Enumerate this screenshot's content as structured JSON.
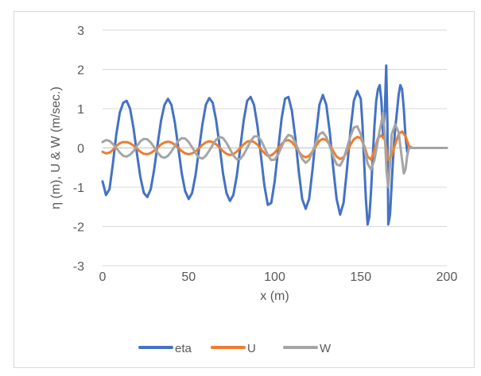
{
  "chart_data": {
    "type": "line",
    "xlabel": "x (m)",
    "ylabel": "η (m), U & W (m/sec.)",
    "xlim": [
      0,
      200
    ],
    "ylim": [
      -3,
      3
    ],
    "x_ticks": [
      0,
      50,
      100,
      150,
      200
    ],
    "y_ticks": [
      -3,
      -2,
      -1,
      0,
      1,
      2,
      3
    ],
    "grid": "horizontal",
    "legend_position": "bottom",
    "series": [
      {
        "name": "eta",
        "color": "#4472C4",
        "points": [
          [
            0,
            -0.85
          ],
          [
            2,
            -1.2
          ],
          [
            4,
            -1.05
          ],
          [
            6,
            -0.4
          ],
          [
            8,
            0.35
          ],
          [
            10,
            0.9
          ],
          [
            12,
            1.15
          ],
          [
            14,
            1.2
          ],
          [
            16,
            1.0
          ],
          [
            18,
            0.5
          ],
          [
            20,
            -0.15
          ],
          [
            22,
            -0.75
          ],
          [
            24,
            -1.15
          ],
          [
            26,
            -1.25
          ],
          [
            28,
            -1.05
          ],
          [
            30,
            -0.55
          ],
          [
            32,
            0.1
          ],
          [
            34,
            0.7
          ],
          [
            36,
            1.1
          ],
          [
            38,
            1.25
          ],
          [
            40,
            1.1
          ],
          [
            42,
            0.65
          ],
          [
            44,
            0.0
          ],
          [
            46,
            -0.65
          ],
          [
            48,
            -1.1
          ],
          [
            50,
            -1.3
          ],
          [
            52,
            -1.15
          ],
          [
            54,
            -0.7
          ],
          [
            56,
            -0.05
          ],
          [
            58,
            0.6
          ],
          [
            60,
            1.1
          ],
          [
            62,
            1.27
          ],
          [
            64,
            1.15
          ],
          [
            66,
            0.7
          ],
          [
            68,
            0.05
          ],
          [
            70,
            -0.65
          ],
          [
            72,
            -1.15
          ],
          [
            74,
            -1.35
          ],
          [
            76,
            -1.2
          ],
          [
            78,
            -0.7
          ],
          [
            80,
            0.0
          ],
          [
            82,
            0.7
          ],
          [
            84,
            1.2
          ],
          [
            86,
            1.3
          ],
          [
            88,
            1.1
          ],
          [
            90,
            0.55
          ],
          [
            92,
            -0.2
          ],
          [
            94,
            -0.95
          ],
          [
            96,
            -1.45
          ],
          [
            98,
            -1.4
          ],
          [
            100,
            -0.85
          ],
          [
            102,
            -0.05
          ],
          [
            104,
            0.75
          ],
          [
            106,
            1.25
          ],
          [
            108,
            1.3
          ],
          [
            110,
            0.95
          ],
          [
            112,
            0.25
          ],
          [
            114,
            -0.6
          ],
          [
            116,
            -1.3
          ],
          [
            118,
            -1.55
          ],
          [
            120,
            -1.3
          ],
          [
            122,
            -0.55
          ],
          [
            124,
            0.35
          ],
          [
            126,
            1.1
          ],
          [
            128,
            1.35
          ],
          [
            130,
            1.1
          ],
          [
            132,
            0.4
          ],
          [
            134,
            -0.5
          ],
          [
            136,
            -1.3
          ],
          [
            138,
            -1.7
          ],
          [
            140,
            -1.4
          ],
          [
            142,
            -0.55
          ],
          [
            144,
            0.45
          ],
          [
            146,
            1.2
          ],
          [
            148,
            1.45
          ],
          [
            150,
            1.25
          ],
          [
            151,
            0.6
          ],
          [
            152,
            -0.4
          ],
          [
            153,
            -1.3
          ],
          [
            154,
            -1.95
          ],
          [
            155,
            -1.75
          ],
          [
            156,
            -1.1
          ],
          [
            157,
            -0.2
          ],
          [
            158,
            0.6
          ],
          [
            159,
            1.2
          ],
          [
            160,
            1.5
          ],
          [
            161,
            1.6
          ],
          [
            162,
            1.2
          ],
          [
            163,
            0.3
          ],
          [
            164,
            1.0
          ],
          [
            164.8,
            2.1
          ],
          [
            165.5,
            0.6
          ],
          [
            166,
            -1.95
          ],
          [
            167,
            -1.7
          ],
          [
            168,
            -0.9
          ],
          [
            169,
            -0.1
          ],
          [
            170,
            0.5
          ],
          [
            171,
            0.9
          ],
          [
            172,
            1.35
          ],
          [
            173,
            1.6
          ],
          [
            174,
            1.5
          ],
          [
            175,
            1.0
          ],
          [
            176,
            0.3
          ],
          [
            177,
            -0.1
          ],
          [
            178,
            0.0
          ],
          [
            200,
            0.0
          ]
        ]
      },
      {
        "name": "U",
        "color": "#ED7D31",
        "points": [
          [
            0,
            -0.1
          ],
          [
            2,
            -0.14
          ],
          [
            4,
            -0.12
          ],
          [
            6,
            -0.05
          ],
          [
            8,
            0.05
          ],
          [
            10,
            0.12
          ],
          [
            12,
            0.15
          ],
          [
            14,
            0.15
          ],
          [
            16,
            0.12
          ],
          [
            18,
            0.06
          ],
          [
            20,
            -0.02
          ],
          [
            22,
            -0.1
          ],
          [
            24,
            -0.15
          ],
          [
            26,
            -0.16
          ],
          [
            28,
            -0.13
          ],
          [
            30,
            -0.07
          ],
          [
            32,
            0.01
          ],
          [
            34,
            0.09
          ],
          [
            36,
            0.14
          ],
          [
            38,
            0.16
          ],
          [
            40,
            0.14
          ],
          [
            42,
            0.08
          ],
          [
            44,
            0.0
          ],
          [
            46,
            -0.08
          ],
          [
            48,
            -0.14
          ],
          [
            50,
            -0.16
          ],
          [
            52,
            -0.14
          ],
          [
            54,
            -0.09
          ],
          [
            56,
            -0.01
          ],
          [
            58,
            0.08
          ],
          [
            60,
            0.14
          ],
          [
            62,
            0.17
          ],
          [
            64,
            0.15
          ],
          [
            66,
            0.09
          ],
          [
            68,
            0.01
          ],
          [
            70,
            -0.08
          ],
          [
            72,
            -0.15
          ],
          [
            74,
            -0.18
          ],
          [
            76,
            -0.16
          ],
          [
            78,
            -0.09
          ],
          [
            80,
            0.0
          ],
          [
            82,
            0.09
          ],
          [
            84,
            0.16
          ],
          [
            86,
            0.18
          ],
          [
            88,
            0.15
          ],
          [
            90,
            0.08
          ],
          [
            92,
            -0.03
          ],
          [
            94,
            -0.13
          ],
          [
            96,
            -0.2
          ],
          [
            98,
            -0.19
          ],
          [
            100,
            -0.12
          ],
          [
            102,
            -0.01
          ],
          [
            104,
            0.1
          ],
          [
            106,
            0.18
          ],
          [
            108,
            0.2
          ],
          [
            110,
            0.15
          ],
          [
            112,
            0.04
          ],
          [
            114,
            -0.09
          ],
          [
            116,
            -0.2
          ],
          [
            118,
            -0.24
          ],
          [
            120,
            -0.2
          ],
          [
            122,
            -0.09
          ],
          [
            124,
            0.05
          ],
          [
            126,
            0.18
          ],
          [
            128,
            0.23
          ],
          [
            130,
            0.2
          ],
          [
            132,
            0.08
          ],
          [
            134,
            -0.08
          ],
          [
            136,
            -0.22
          ],
          [
            138,
            -0.28
          ],
          [
            140,
            -0.24
          ],
          [
            142,
            -0.1
          ],
          [
            144,
            0.08
          ],
          [
            146,
            0.22
          ],
          [
            148,
            0.28
          ],
          [
            150,
            0.25
          ],
          [
            152,
            0.05
          ],
          [
            154,
            -0.22
          ],
          [
            156,
            -0.3
          ],
          [
            158,
            -0.05
          ],
          [
            160,
            0.25
          ],
          [
            162,
            0.32
          ],
          [
            164,
            0.2
          ],
          [
            166,
            -0.3
          ],
          [
            168,
            -0.2
          ],
          [
            170,
            0.1
          ],
          [
            172,
            0.35
          ],
          [
            174,
            0.42
          ],
          [
            176,
            0.3
          ],
          [
            178,
            0.05
          ],
          [
            180,
            0.0
          ],
          [
            200,
            0.0
          ]
        ]
      },
      {
        "name": "W",
        "color": "#A5A5A5",
        "points": [
          [
            0,
            0.15
          ],
          [
            2,
            0.2
          ],
          [
            4,
            0.18
          ],
          [
            6,
            0.1
          ],
          [
            8,
            0.0
          ],
          [
            10,
            -0.12
          ],
          [
            12,
            -0.2
          ],
          [
            14,
            -0.22
          ],
          [
            16,
            -0.17
          ],
          [
            18,
            -0.08
          ],
          [
            20,
            0.05
          ],
          [
            22,
            0.17
          ],
          [
            24,
            0.23
          ],
          [
            26,
            0.22
          ],
          [
            28,
            0.14
          ],
          [
            30,
            0.02
          ],
          [
            32,
            -0.12
          ],
          [
            34,
            -0.22
          ],
          [
            36,
            -0.25
          ],
          [
            38,
            -0.2
          ],
          [
            40,
            -0.09
          ],
          [
            42,
            0.05
          ],
          [
            44,
            0.18
          ],
          [
            46,
            0.25
          ],
          [
            48,
            0.24
          ],
          [
            50,
            0.15
          ],
          [
            52,
            0.02
          ],
          [
            54,
            -0.13
          ],
          [
            56,
            -0.24
          ],
          [
            58,
            -0.27
          ],
          [
            60,
            -0.2
          ],
          [
            62,
            -0.07
          ],
          [
            64,
            0.08
          ],
          [
            66,
            0.21
          ],
          [
            68,
            0.28
          ],
          [
            70,
            0.25
          ],
          [
            72,
            0.13
          ],
          [
            74,
            -0.03
          ],
          [
            76,
            -0.19
          ],
          [
            78,
            -0.29
          ],
          [
            80,
            -0.28
          ],
          [
            82,
            -0.17
          ],
          [
            84,
            0.0
          ],
          [
            86,
            0.17
          ],
          [
            88,
            0.29
          ],
          [
            90,
            0.3
          ],
          [
            92,
            0.2
          ],
          [
            94,
            0.02
          ],
          [
            96,
            -0.18
          ],
          [
            98,
            -0.31
          ],
          [
            100,
            -0.3
          ],
          [
            102,
            -0.17
          ],
          [
            104,
            0.03
          ],
          [
            106,
            0.22
          ],
          [
            108,
            0.33
          ],
          [
            110,
            0.3
          ],
          [
            112,
            0.14
          ],
          [
            114,
            -0.08
          ],
          [
            116,
            -0.28
          ],
          [
            118,
            -0.38
          ],
          [
            120,
            -0.3
          ],
          [
            122,
            -0.1
          ],
          [
            124,
            0.15
          ],
          [
            126,
            0.35
          ],
          [
            128,
            0.4
          ],
          [
            130,
            0.28
          ],
          [
            132,
            0.05
          ],
          [
            134,
            -0.22
          ],
          [
            136,
            -0.42
          ],
          [
            138,
            -0.45
          ],
          [
            140,
            -0.28
          ],
          [
            142,
            0.0
          ],
          [
            144,
            0.3
          ],
          [
            146,
            0.52
          ],
          [
            148,
            0.55
          ],
          [
            150,
            0.35
          ],
          [
            152,
            0.0
          ],
          [
            154,
            -0.4
          ],
          [
            156,
            -0.55
          ],
          [
            158,
            -0.3
          ],
          [
            160,
            0.2
          ],
          [
            161,
            0.45
          ],
          [
            162,
            0.65
          ],
          [
            163,
            0.9
          ],
          [
            164,
            0.3
          ],
          [
            165,
            -0.6
          ],
          [
            166,
            -1.0
          ],
          [
            167,
            -0.4
          ],
          [
            168,
            0.35
          ],
          [
            170,
            0.6
          ],
          [
            172,
            0.4
          ],
          [
            174,
            -0.3
          ],
          [
            175,
            -0.65
          ],
          [
            176,
            -0.55
          ],
          [
            177,
            -0.2
          ],
          [
            178,
            0.0
          ],
          [
            200,
            0.0
          ]
        ]
      }
    ]
  }
}
